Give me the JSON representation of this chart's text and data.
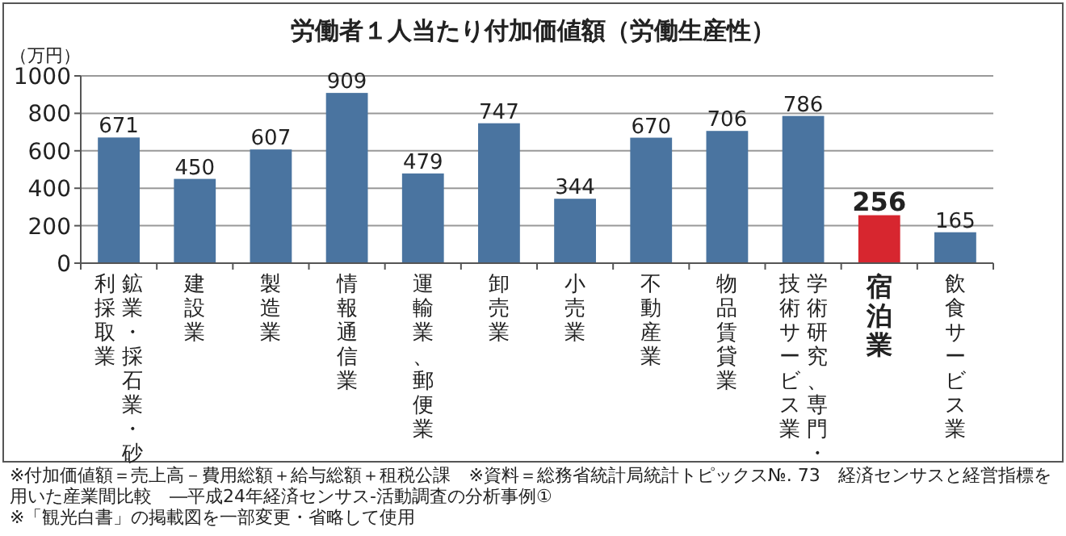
{
  "chart_data": {
    "type": "bar",
    "title": "労働者１人当たり付加価値額（労働生産性）",
    "ylabel": "（万円）",
    "categories": [
      "鉱業・採石業・砂利採取業",
      "建設業",
      "製造業",
      "情報通信業",
      "運輸業、郵便業",
      "卸売業",
      "小売業",
      "不動産業",
      "物品賃貸業",
      "学術研究、専門・技術サービス業",
      "宿泊業",
      "飲食サービス業"
    ],
    "values": [
      671,
      450,
      607,
      909,
      479,
      747,
      344,
      670,
      706,
      786,
      256,
      165
    ],
    "colors": [
      "#4a74a0",
      "#4a74a0",
      "#4a74a0",
      "#4a74a0",
      "#4a74a0",
      "#4a74a0",
      "#4a74a0",
      "#4a74a0",
      "#4a74a0",
      "#4a74a0",
      "#d7262f",
      "#4a74a0"
    ],
    "ylim": [
      0,
      1000
    ],
    "yticks": [
      0,
      200,
      400,
      600,
      800,
      1000
    ],
    "grid": "y",
    "data_labels": true,
    "annotations": [
      "※付加価値額＝売上高－費用総額＋給与総額＋租税公課　※資料＝総務省統計局統計トピックス№. 73　経済センサスと経営指標を用いた産業間比較　―平成24年経済センサス‐活動調査の分析事例①",
      "※「観光白書」の掲載図を一部変更・省略して使用"
    ]
  }
}
